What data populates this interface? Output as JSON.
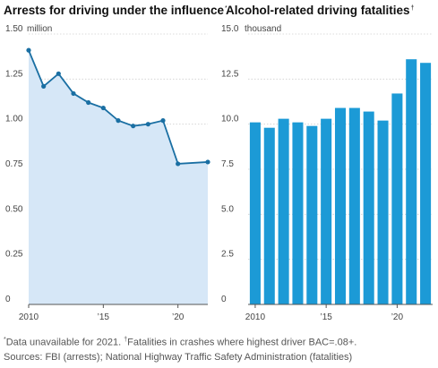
{
  "panels": [
    {
      "title": "Arrests for driving under the influence",
      "title_mark": "*"
    },
    {
      "title": "Alcohol-related driving fatalities",
      "title_mark": "†"
    }
  ],
  "chart_data": [
    {
      "type": "area",
      "title": "Arrests for driving under the influence",
      "unit": "million",
      "ylim": [
        0,
        1.5
      ],
      "yticks": [
        0,
        0.25,
        0.5,
        0.75,
        1.0,
        1.25,
        1.5
      ],
      "ytick_labels": [
        "0",
        "0.25",
        "0.50",
        "0.75",
        "1.00",
        "1.25",
        "1.50"
      ],
      "xlim": [
        2010,
        2022
      ],
      "xticks": [
        2010,
        2015,
        2020
      ],
      "xtick_labels": [
        "2010",
        "’15",
        "’20"
      ],
      "x": [
        2010,
        2011,
        2012,
        2013,
        2014,
        2015,
        2016,
        2017,
        2018,
        2019,
        2020,
        2022
      ],
      "y": [
        1.41,
        1.21,
        1.28,
        1.17,
        1.12,
        1.09,
        1.02,
        0.99,
        1.0,
        1.02,
        0.78,
        0.79
      ],
      "line_color": "#1a6fa3",
      "fill_color": "#d6e7f7",
      "grid": true
    },
    {
      "type": "bar",
      "title": "Alcohol-related driving fatalities",
      "unit": "thousand",
      "ylim": [
        0,
        15
      ],
      "yticks": [
        0,
        2.5,
        5,
        7.5,
        10,
        12.5,
        15
      ],
      "ytick_labels": [
        "0",
        "2.5",
        "5.0",
        "7.5",
        "10.0",
        "12.5",
        "15.0"
      ],
      "xticks": [
        2010,
        2015,
        2020
      ],
      "xtick_labels": [
        "2010",
        "’15",
        "’20"
      ],
      "categories": [
        2010,
        2011,
        2012,
        2013,
        2014,
        2015,
        2016,
        2017,
        2018,
        2019,
        2020,
        2021,
        2022
      ],
      "values": [
        10.1,
        9.8,
        10.3,
        10.1,
        9.9,
        10.3,
        10.9,
        10.9,
        10.7,
        10.2,
        11.7,
        13.6,
        13.4
      ],
      "bar_color": "#1c9ad6",
      "grid": true
    }
  ],
  "footnotes": {
    "line1_mark": "*",
    "line1": "Data unavailable for 2021. ",
    "line1_mark2": "†",
    "line1b": "Fatalities in crashes where highest driver BAC=.08+.",
    "line2": "Sources: FBI (arrests); National Highway Traffic Safety Administration (fatalities)"
  }
}
